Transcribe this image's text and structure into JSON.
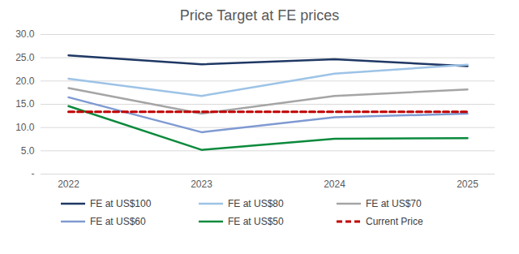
{
  "chart_data": {
    "type": "line",
    "title": "Price Target at FE prices",
    "categories": [
      "2022",
      "2023",
      "2024",
      "2025"
    ],
    "series": [
      {
        "name": "FE at US$100",
        "color": "#1f3864",
        "values": [
          25.5,
          23.6,
          24.7,
          23.2
        ]
      },
      {
        "name": "FE at US$80",
        "color": "#9dc3e6",
        "values": [
          20.5,
          16.8,
          21.6,
          23.5
        ]
      },
      {
        "name": "FE at US$70",
        "color": "#a5a5a5",
        "values": [
          18.5,
          13.0,
          16.8,
          18.2
        ]
      },
      {
        "name": "FE at US$60",
        "color": "#7f9ad2",
        "values": [
          16.5,
          9.0,
          12.2,
          13.0
        ]
      },
      {
        "name": "FE at US$50",
        "color": "#0b8a3c",
        "values": [
          14.6,
          5.2,
          7.6,
          7.7
        ]
      },
      {
        "name": "Current Price",
        "color": "#c00000",
        "line_style": "dashed",
        "values": [
          13.4,
          13.4,
          13.4,
          13.4
        ]
      }
    ],
    "ylim": [
      0,
      30
    ],
    "yticks": [
      {
        "value": 0,
        "label": "-"
      },
      {
        "value": 5,
        "label": "5.0"
      },
      {
        "value": 10,
        "label": "10.0"
      },
      {
        "value": 15,
        "label": "15.0"
      },
      {
        "value": 20,
        "label": "20.0"
      },
      {
        "value": 25,
        "label": "25.0"
      },
      {
        "value": 30,
        "label": "30.0"
      }
    ],
    "grid": true,
    "legend": "bottom"
  }
}
